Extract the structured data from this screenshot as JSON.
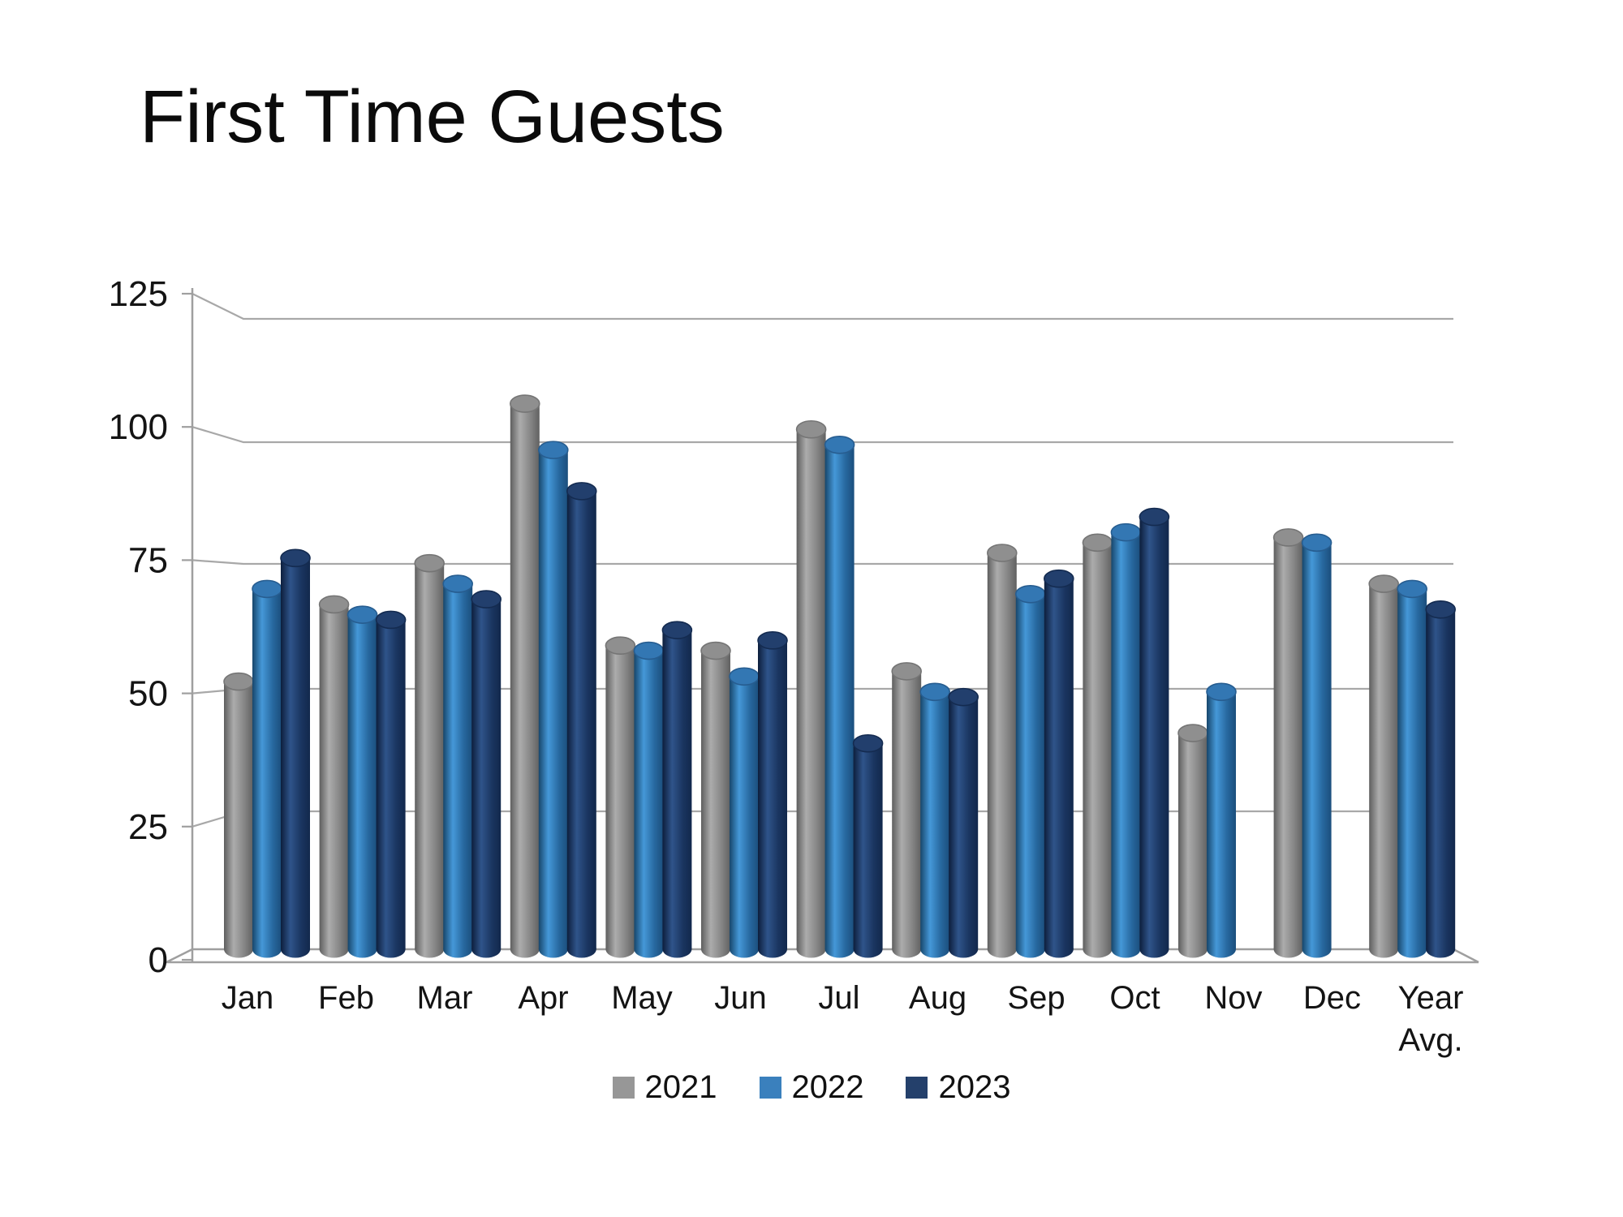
{
  "page": {
    "background": "#ffffff"
  },
  "chart_data": {
    "type": "bar",
    "style": "3d-cylinder",
    "title": "First Time Guests",
    "categories": [
      "Jan",
      "Feb",
      "Mar",
      "Apr",
      "May",
      "Jun",
      "Jul",
      "Aug",
      "Sep",
      "Oct",
      "Nov",
      "Dec",
      "Year Avg."
    ],
    "series": [
      {
        "name": "2021",
        "color": "#979797",
        "values": [
          52,
          67,
          75,
          106,
          59,
          58,
          101,
          54,
          77,
          79,
          42,
          80,
          71
        ],
        "cylinder": {
          "edge": "#5e5e5e",
          "highlight": "#acacac",
          "mid": "#858585",
          "dark": "#616161",
          "top": "#8f8f8f",
          "top_rim": "#757575"
        }
      },
      {
        "name": "2022",
        "color": "#3a80bd",
        "values": [
          70,
          65,
          71,
          97,
          58,
          53,
          98,
          50,
          69,
          81,
          50,
          79,
          70
        ],
        "cylinder": {
          "edge": "#17466b",
          "highlight": "#4598d8",
          "mid": "#27689f",
          "dark": "#1b4e7c",
          "top": "#3377b3",
          "top_rim": "#275d90"
        }
      },
      {
        "name": "2023",
        "color": "#24406b",
        "values": [
          76,
          64,
          68,
          89,
          62,
          60,
          40,
          49,
          72,
          84,
          null,
          null,
          66
        ],
        "cylinder": {
          "edge": "#0d1e3c",
          "highlight": "#2f548a",
          "mid": "#1a3560",
          "dark": "#12284c",
          "top": "#223f6d",
          "top_rim": "#142b50"
        }
      }
    ],
    "ylim": [
      0,
      125
    ],
    "yticks": [
      0,
      25,
      50,
      75,
      100,
      125
    ],
    "grid": true,
    "legend_position": "bottom",
    "axis_color": "#9f9f9f",
    "grid_color": "#a8a8a8",
    "label_color": "#141414"
  }
}
